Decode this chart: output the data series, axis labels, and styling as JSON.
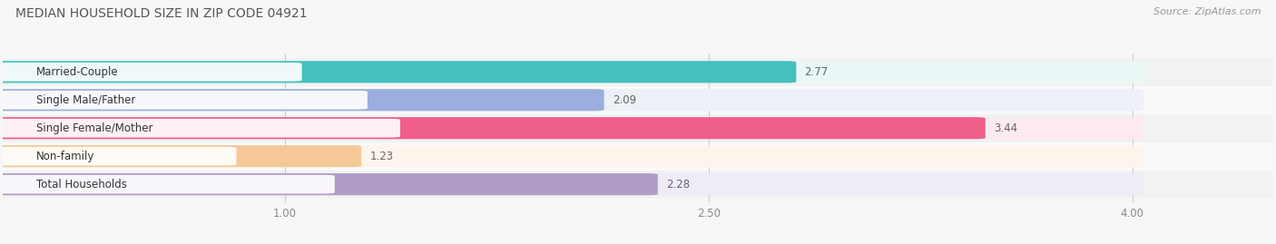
{
  "title": "MEDIAN HOUSEHOLD SIZE IN ZIP CODE 04921",
  "source": "Source: ZipAtlas.com",
  "categories": [
    "Married-Couple",
    "Single Male/Father",
    "Single Female/Mother",
    "Non-family",
    "Total Households"
  ],
  "values": [
    2.77,
    2.09,
    3.44,
    1.23,
    2.28
  ],
  "bar_colors": [
    "#45BFBF",
    "#9BAEDD",
    "#EE5F8A",
    "#F5C898",
    "#B09CC8"
  ],
  "bar_bg_colors": [
    "#EAF7F7",
    "#EEF0F8",
    "#FCEAF0",
    "#FDF5EC",
    "#F0ECF7"
  ],
  "row_bg_colors": [
    "#F2F2F2",
    "#FAFAFA",
    "#F2F2F2",
    "#FAFAFA",
    "#F2F2F2"
  ],
  "xlim_min": 0.0,
  "xlim_max": 4.5,
  "bar_max": 4.0,
  "xticks": [
    1.0,
    2.5,
    4.0
  ],
  "xtick_labels": [
    "1.00",
    "2.50",
    "4.00"
  ],
  "title_fontsize": 10,
  "source_fontsize": 8,
  "label_fontsize": 8.5,
  "value_fontsize": 8.5,
  "tick_fontsize": 8.5,
  "bar_height": 0.7,
  "background_color": "#F7F7F7"
}
